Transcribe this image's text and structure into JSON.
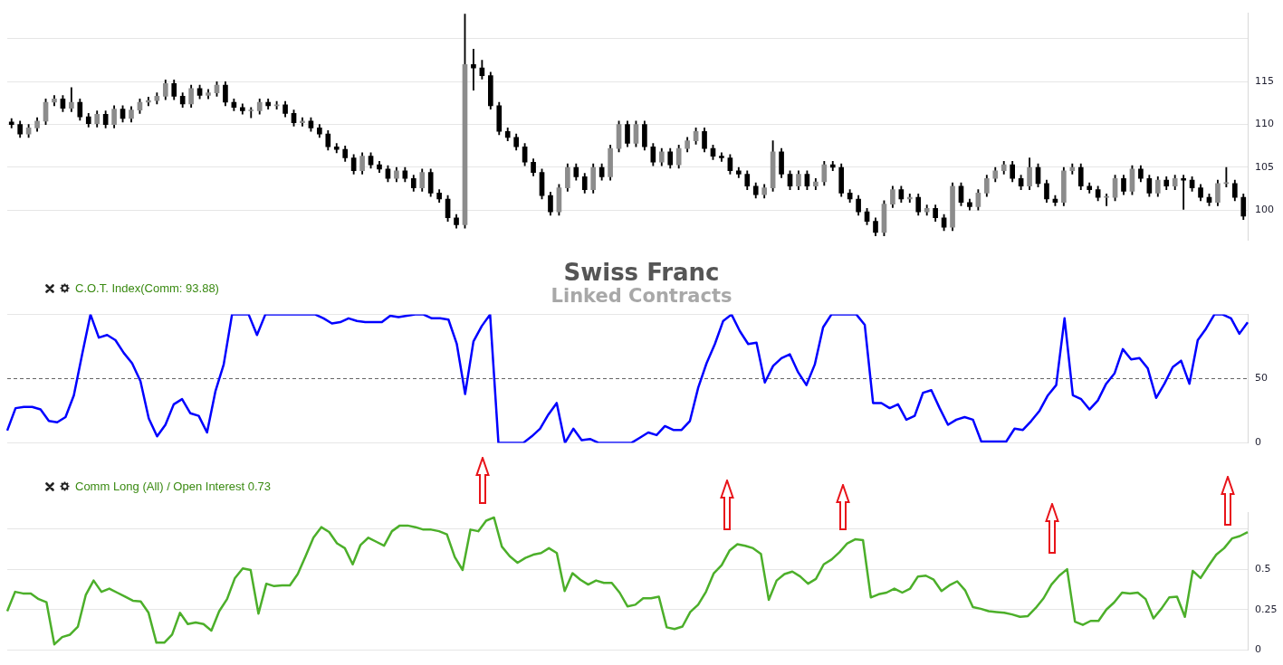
{
  "chart_data": [
    {
      "type": "candlestick",
      "title": "Swiss Franc",
      "subtitle": "Linked Contracts",
      "color": "#000000",
      "colors": [
        "#000000",
        "#000000",
        "#8c8c8c",
        "#8c8c8c",
        "#8c8c8c",
        "#8c8c8c",
        "#000000",
        "#8c8c8c",
        "#000000",
        "#000000",
        "#8c8c8c",
        "#000000",
        "#8c8c8c",
        "#000000",
        "#8c8c8c",
        "#8c8c8c",
        "#8c8c8c",
        "#8c8c8c",
        "#8c8c8c",
        "#000000",
        "#000000",
        "#8c8c8c",
        "#000000",
        "#8c8c8c",
        "#8c8c8c",
        "#000000",
        "#000000",
        "#000000",
        "#8c8c8c",
        "#8c8c8c",
        "#000000",
        "#8c8c8c",
        "#000000",
        "#000000",
        "#8c8c8c",
        "#000000",
        "#000000",
        "#000000",
        "#000000",
        "#000000",
        "#000000",
        "#8c8c8c",
        "#000000",
        "#000000",
        "#000000",
        "#8c8c8c",
        "#000000",
        "#000000",
        "#8c8c8c",
        "#000000",
        "#000000",
        "#000000",
        "#000000",
        "#8c8c8c",
        "#000000",
        "#000000",
        "#000000",
        "#000000",
        "#000000",
        "#000000",
        "#000000",
        "#000000",
        "#000000",
        "#000000",
        "#8c8c8c",
        "#8c8c8c",
        "#000000",
        "#000000",
        "#8c8c8c",
        "#000000",
        "#8c8c8c",
        "#8c8c8c",
        "#000000",
        "#8c8c8c",
        "#000000",
        "#000000",
        "#8c8c8c",
        "#000000",
        "#8c8c8c",
        "#8c8c8c",
        "#8c8c8c",
        "#000000",
        "#000000",
        "#000000",
        "#000000",
        "#000000",
        "#000000",
        "#000000",
        "#8c8c8c",
        "#8c8c8c",
        "#000000",
        "#000000",
        "#8c8c8c",
        "#000000",
        "#8c8c8c",
        "#8c8c8c",
        "#000000",
        "#000000",
        "#000000",
        "#000000",
        "#000000",
        "#000000",
        "#8c8c8c",
        "#8c8c8c",
        "#000000",
        "#8c8c8c",
        "#000000",
        "#8c8c8c",
        "#000000",
        "#000000",
        "#8c8c8c",
        "#000000",
        "#000000",
        "#8c8c8c",
        "#8c8c8c",
        "#8c8c8c",
        "#8c8c8c",
        "#000000",
        "#000000",
        "#8c8c8c",
        "#000000",
        "#000000",
        "#000000",
        "#8c8c8c",
        "#8c8c8c",
        "#000000",
        "#000000",
        "#000000",
        "#8c8c8c",
        "#8c8c8c",
        "#000000",
        "#8c8c8c",
        "#000000",
        "#000000",
        "#8c8c8c",
        "#000000",
        "#8c8c8c",
        "#000000",
        "#000000",
        "#000000",
        "#000000",
        "#8c8c8c",
        "#8c8c8c",
        "#000000",
        "#000000"
      ],
      "categories": [
        null,
        null,
        null,
        null,
        null,
        null,
        null,
        null,
        null,
        null,
        null,
        null,
        null,
        null,
        null,
        null,
        null,
        null,
        null,
        null,
        null,
        null,
        null,
        null,
        null,
        null,
        null,
        null,
        null,
        null,
        null,
        null,
        null,
        null,
        null,
        null,
        null,
        null,
        null,
        null,
        null,
        null,
        null,
        null,
        null,
        null,
        null,
        null,
        null,
        null,
        null,
        null,
        null,
        null,
        null,
        null,
        null,
        null,
        null,
        null,
        null,
        null,
        null,
        null,
        null,
        null,
        null,
        null,
        null,
        null,
        null,
        null,
        null,
        null,
        null,
        null,
        null,
        null,
        null,
        null,
        null,
        null,
        null,
        null,
        null,
        null,
        null,
        null,
        null,
        null,
        null,
        null,
        null,
        null,
        null,
        null,
        null,
        null,
        null,
        null,
        null,
        null,
        null,
        null,
        null,
        null,
        null,
        null,
        null,
        null,
        null,
        null,
        null,
        null,
        null,
        null,
        null,
        null,
        null,
        null,
        null,
        null,
        null,
        null,
        null,
        null,
        null,
        null,
        null,
        null,
        null,
        null,
        null,
        null,
        null,
        null,
        null,
        null,
        null,
        null,
        null,
        null,
        null,
        null,
        null
      ],
      "ohlc": [
        [
          110.3,
          110.7,
          109.6,
          110.0
        ],
        [
          110.0,
          110.4,
          108.5,
          108.9
        ],
        [
          108.9,
          110.0,
          108.5,
          109.6
        ],
        [
          109.6,
          110.8,
          109.2,
          110.4
        ],
        [
          110.4,
          113.0,
          110.0,
          112.6
        ],
        [
          112.6,
          113.4,
          112.2,
          113.0
        ],
        [
          113.0,
          113.4,
          111.5,
          111.9
        ],
        [
          111.9,
          114.3,
          111.5,
          112.6
        ],
        [
          112.6,
          113.0,
          110.5,
          110.9
        ],
        [
          110.9,
          111.3,
          109.7,
          110.1
        ],
        [
          110.1,
          111.6,
          109.7,
          111.2
        ],
        [
          111.2,
          111.6,
          109.6,
          110.0
        ],
        [
          110.0,
          112.2,
          109.6,
          111.8
        ],
        [
          111.8,
          112.2,
          110.3,
          110.7
        ],
        [
          110.7,
          112.1,
          110.3,
          111.7
        ],
        [
          111.7,
          113.0,
          111.3,
          112.6
        ],
        [
          112.6,
          113.2,
          112.2,
          112.8
        ],
        [
          112.8,
          113.7,
          112.4,
          113.3
        ],
        [
          113.3,
          115.2,
          112.9,
          114.8
        ],
        [
          114.8,
          115.2,
          112.9,
          113.3
        ],
        [
          113.3,
          113.7,
          112.0,
          112.4
        ],
        [
          112.4,
          114.6,
          112.0,
          114.2
        ],
        [
          114.2,
          114.6,
          113.0,
          113.4
        ],
        [
          113.4,
          114.1,
          113.0,
          113.7
        ],
        [
          113.7,
          115.0,
          113.3,
          114.6
        ],
        [
          114.6,
          115.0,
          112.2,
          112.6
        ],
        [
          112.6,
          113.0,
          111.6,
          112.0
        ],
        [
          112.0,
          112.4,
          111.2,
          111.6
        ],
        [
          111.6,
          112.0,
          110.8,
          111.6
        ],
        [
          111.6,
          113.0,
          111.2,
          112.6
        ],
        [
          112.6,
          113.0,
          111.8,
          112.2
        ],
        [
          112.2,
          112.7,
          111.8,
          112.3
        ],
        [
          112.3,
          112.7,
          110.9,
          111.3
        ],
        [
          111.3,
          111.7,
          109.8,
          110.2
        ],
        [
          110.2,
          110.8,
          109.8,
          110.4
        ],
        [
          110.4,
          110.8,
          109.2,
          109.6
        ],
        [
          109.6,
          110.0,
          108.5,
          108.9
        ],
        [
          108.9,
          109.3,
          107.0,
          107.4
        ],
        [
          107.4,
          107.8,
          106.7,
          107.1
        ],
        [
          107.1,
          107.5,
          105.7,
          106.1
        ],
        [
          106.1,
          106.5,
          104.2,
          104.6
        ],
        [
          104.6,
          106.7,
          104.2,
          106.3
        ],
        [
          106.3,
          106.7,
          104.9,
          105.3
        ],
        [
          105.3,
          105.7,
          104.4,
          104.8
        ],
        [
          104.8,
          105.2,
          103.3,
          103.7
        ],
        [
          103.7,
          105.0,
          103.3,
          104.6
        ],
        [
          104.6,
          105.0,
          103.3,
          103.7
        ],
        [
          103.7,
          104.1,
          102.2,
          102.6
        ],
        [
          102.6,
          104.8,
          102.2,
          104.4
        ],
        [
          104.4,
          104.8,
          101.6,
          102.0
        ],
        [
          102.0,
          102.4,
          100.9,
          101.3
        ],
        [
          101.3,
          101.7,
          98.7,
          99.1
        ],
        [
          99.1,
          99.5,
          97.9,
          98.3
        ],
        [
          98.3,
          122.9,
          97.9,
          117.0
        ],
        [
          117.0,
          118.8,
          114.0,
          116.6
        ],
        [
          116.6,
          117.5,
          115.3,
          115.7
        ],
        [
          115.7,
          116.1,
          111.8,
          112.2
        ],
        [
          112.2,
          112.6,
          108.8,
          109.2
        ],
        [
          109.2,
          109.6,
          108.1,
          108.5
        ],
        [
          108.5,
          108.9,
          107.0,
          107.4
        ],
        [
          107.4,
          107.8,
          105.2,
          105.6
        ],
        [
          105.6,
          106.0,
          104.0,
          104.4
        ],
        [
          104.4,
          104.8,
          101.3,
          101.7
        ],
        [
          101.7,
          102.1,
          99.4,
          99.8
        ],
        [
          99.8,
          103.0,
          99.4,
          102.6
        ],
        [
          102.6,
          105.4,
          102.2,
          105.0
        ],
        [
          105.0,
          105.4,
          103.5,
          103.9
        ],
        [
          103.9,
          104.3,
          102.0,
          102.4
        ],
        [
          102.4,
          105.4,
          102.0,
          105.0
        ],
        [
          105.0,
          105.4,
          103.5,
          103.9
        ],
        [
          103.9,
          107.6,
          103.5,
          107.2
        ],
        [
          107.2,
          110.4,
          106.8,
          110.0
        ],
        [
          110.0,
          110.4,
          107.4,
          107.8
        ],
        [
          107.8,
          110.4,
          107.4,
          110.0
        ],
        [
          110.0,
          110.4,
          107.0,
          107.4
        ],
        [
          107.4,
          107.8,
          105.2,
          105.6
        ],
        [
          105.6,
          107.2,
          105.2,
          106.8
        ],
        [
          106.8,
          107.2,
          104.9,
          105.3
        ],
        [
          105.3,
          107.6,
          104.9,
          107.2
        ],
        [
          107.2,
          108.5,
          106.8,
          108.1
        ],
        [
          108.1,
          109.6,
          107.7,
          109.2
        ],
        [
          109.2,
          109.6,
          106.8,
          107.2
        ],
        [
          107.2,
          107.6,
          105.9,
          106.3
        ],
        [
          106.3,
          106.7,
          105.7,
          106.1
        ],
        [
          106.1,
          106.5,
          104.2,
          104.6
        ],
        [
          104.6,
          105.0,
          103.8,
          104.2
        ],
        [
          104.2,
          104.6,
          102.4,
          102.8
        ],
        [
          102.8,
          103.2,
          101.4,
          101.8
        ],
        [
          101.8,
          103.0,
          101.4,
          102.6
        ],
        [
          102.6,
          108.1,
          102.2,
          106.8
        ],
        [
          106.8,
          107.2,
          103.8,
          104.2
        ],
        [
          104.2,
          104.6,
          102.4,
          102.8
        ],
        [
          102.8,
          104.6,
          102.4,
          104.2
        ],
        [
          104.2,
          104.6,
          102.4,
          102.8
        ],
        [
          102.8,
          103.7,
          102.4,
          103.3
        ],
        [
          103.3,
          105.7,
          102.9,
          105.3
        ],
        [
          105.3,
          105.7,
          104.6,
          105.0
        ],
        [
          105.0,
          105.4,
          101.6,
          102.0
        ],
        [
          102.0,
          102.4,
          100.9,
          101.3
        ],
        [
          101.3,
          101.7,
          99.4,
          99.8
        ],
        [
          99.8,
          100.2,
          98.3,
          98.7
        ],
        [
          98.7,
          99.1,
          97.0,
          97.4
        ],
        [
          97.4,
          101.1,
          97.0,
          100.7
        ],
        [
          100.7,
          102.8,
          100.3,
          102.4
        ],
        [
          102.4,
          102.8,
          100.9,
          101.3
        ],
        [
          101.3,
          101.9,
          100.9,
          101.5
        ],
        [
          101.5,
          101.9,
          99.4,
          99.8
        ],
        [
          99.8,
          100.6,
          99.4,
          100.2
        ],
        [
          100.2,
          100.6,
          98.7,
          99.1
        ],
        [
          99.1,
          99.5,
          97.6,
          98.0
        ],
        [
          98.0,
          103.2,
          97.6,
          102.8
        ],
        [
          102.8,
          103.2,
          100.5,
          100.9
        ],
        [
          100.9,
          101.3,
          100.0,
          100.4
        ],
        [
          100.4,
          102.4,
          100.0,
          102.0
        ],
        [
          102.0,
          104.1,
          101.6,
          103.7
        ],
        [
          103.7,
          105.0,
          103.3,
          104.6
        ],
        [
          104.6,
          105.7,
          104.2,
          105.3
        ],
        [
          105.3,
          105.7,
          103.3,
          103.7
        ],
        [
          103.7,
          104.1,
          102.4,
          102.8
        ],
        [
          102.8,
          106.1,
          102.4,
          105.0
        ],
        [
          105.0,
          105.4,
          102.7,
          103.1
        ],
        [
          103.1,
          103.5,
          100.9,
          101.3
        ],
        [
          101.3,
          101.7,
          100.5,
          100.9
        ],
        [
          100.9,
          105.0,
          100.5,
          104.6
        ],
        [
          104.6,
          105.4,
          104.2,
          105.0
        ],
        [
          105.0,
          105.4,
          102.4,
          102.8
        ],
        [
          102.8,
          103.2,
          102.0,
          102.4
        ],
        [
          102.4,
          102.8,
          101.1,
          101.5
        ],
        [
          101.5,
          101.9,
          100.5,
          101.5
        ],
        [
          101.5,
          104.1,
          101.1,
          103.7
        ],
        [
          103.7,
          104.1,
          101.8,
          102.2
        ],
        [
          102.2,
          105.2,
          101.8,
          104.8
        ],
        [
          104.8,
          105.2,
          103.3,
          103.7
        ],
        [
          103.7,
          104.1,
          101.6,
          102.0
        ],
        [
          102.0,
          103.9,
          101.6,
          103.5
        ],
        [
          103.5,
          103.9,
          102.4,
          102.8
        ],
        [
          102.8,
          104.1,
          102.4,
          103.7
        ],
        [
          103.7,
          104.1,
          100.1,
          103.5
        ],
        [
          103.5,
          103.9,
          102.2,
          102.6
        ],
        [
          102.6,
          103.0,
          101.1,
          101.5
        ],
        [
          101.5,
          101.9,
          100.5,
          100.9
        ],
        [
          100.9,
          103.5,
          100.5,
          103.1
        ],
        [
          103.1,
          105.0,
          102.7,
          103.1
        ],
        [
          103.1,
          103.5,
          101.1,
          101.5
        ],
        [
          101.5,
          101.9,
          98.9,
          99.3
        ]
      ],
      "ylim": [
        96.5,
        123
      ],
      "yticks": [
        100,
        105,
        110,
        115,
        {
          "value": 120,
          "label": null
        }
      ],
      "grid": "y",
      "tick_labels": "y"
    },
    {
      "type": "line",
      "title": "C.O.T. Index(Comm: 93.88)",
      "color": "#0000ff",
      "marker": "none",
      "line_style": "solid",
      "categories": [
        null,
        null,
        null,
        null,
        null,
        null,
        null,
        null,
        null,
        null,
        null,
        null,
        null,
        null,
        null,
        null,
        null,
        null,
        null,
        null,
        null,
        null,
        null,
        null,
        null,
        null,
        null,
        null,
        null,
        null,
        null,
        null,
        null,
        null,
        null,
        null,
        null,
        null,
        null,
        null,
        null,
        null,
        null,
        null,
        null,
        null,
        null,
        null,
        null,
        null,
        null,
        null,
        null,
        null,
        null,
        null,
        null,
        null,
        null,
        null,
        null,
        null,
        null,
        null,
        null,
        null,
        null,
        null,
        null,
        null,
        null,
        null,
        null,
        null,
        null,
        null,
        null,
        null,
        null,
        null,
        null,
        null,
        null,
        null,
        null,
        null,
        null,
        null,
        null,
        null,
        null,
        null,
        null,
        null,
        null,
        null,
        null,
        null,
        null,
        null,
        null,
        null,
        null,
        null,
        null,
        null,
        null,
        null,
        null,
        null,
        null,
        null,
        null,
        null,
        null,
        null,
        null,
        null,
        null,
        null,
        null,
        null,
        null,
        null,
        null,
        null,
        null,
        null,
        null,
        null,
        null,
        null,
        null,
        null,
        null,
        null,
        null,
        null,
        null,
        null,
        null,
        null,
        null,
        null,
        null,
        null,
        null,
        null,
        null,
        null
      ],
      "values": [
        9.5,
        27,
        28,
        28,
        26,
        17,
        16,
        20,
        37,
        69,
        100,
        82,
        84,
        80,
        70,
        62,
        48,
        19,
        5,
        14,
        30,
        34,
        23,
        21,
        8,
        40,
        61,
        100,
        100,
        100,
        84,
        100,
        100,
        100,
        100,
        100,
        100,
        100,
        97,
        93,
        94,
        97,
        95,
        94,
        94,
        94,
        99,
        98,
        99,
        100,
        100,
        97,
        97,
        96,
        77,
        38,
        79,
        91,
        100,
        0,
        0,
        0,
        0,
        5,
        11,
        22,
        31,
        0,
        11,
        2,
        3,
        0,
        0,
        0,
        0,
        0,
        4,
        8,
        6,
        13,
        10,
        10,
        17,
        43,
        62,
        77,
        95,
        100,
        87,
        77,
        78,
        47,
        60,
        66,
        69,
        55,
        45,
        61,
        90,
        100,
        100,
        100,
        100,
        92,
        31,
        31,
        27,
        30,
        18,
        21,
        39,
        41,
        27,
        14,
        18,
        20,
        18,
        1,
        1,
        1,
        1,
        11,
        10,
        17,
        25,
        37,
        45,
        97,
        37,
        34,
        26,
        33,
        46,
        54,
        73,
        65,
        66,
        58,
        35,
        46,
        59,
        64,
        46,
        80,
        89,
        100,
        100,
        97,
        85,
        93.88
      ],
      "ylim": [
        0,
        100
      ],
      "yticks": [
        0,
        50,
        {
          "value": 100,
          "label": null
        }
      ],
      "grid": "y",
      "tick_labels": "y",
      "ref_lines": [
        {
          "axis": "y",
          "value": 50,
          "color": "#666666",
          "line_style": "dashed"
        }
      ]
    },
    {
      "type": "line",
      "title": "Comm Long (All) / Open Interest 0.73",
      "color": "#4caf2a",
      "marker": "none",
      "line_style": "solid",
      "categories": [
        null,
        null,
        null,
        null,
        null,
        null,
        null,
        null,
        null,
        null,
        null,
        null,
        null,
        null,
        null,
        null,
        null,
        null,
        null,
        null,
        null,
        null,
        null,
        null,
        null,
        null,
        null,
        null,
        null,
        null,
        null,
        null,
        null,
        null,
        null,
        null,
        null,
        null,
        null,
        null,
        null,
        null,
        null,
        null,
        null,
        null,
        null,
        null,
        null,
        null,
        null,
        null,
        null,
        null,
        null,
        null,
        null,
        null,
        null,
        null,
        null,
        null,
        null,
        null,
        null,
        null,
        null,
        null,
        null,
        null,
        null,
        null,
        null,
        null,
        null,
        null,
        null,
        null,
        null,
        null,
        null,
        null,
        null,
        null,
        null,
        null,
        null,
        null,
        null,
        null,
        null,
        null,
        null,
        null,
        null,
        null,
        null,
        null,
        null,
        null,
        null,
        null,
        null,
        null,
        null,
        null,
        null,
        null,
        null,
        null,
        null,
        null,
        null,
        null,
        null,
        null,
        null,
        null,
        null,
        null,
        null,
        null,
        null,
        null,
        null,
        null,
        null,
        null,
        null,
        null,
        null,
        null,
        null,
        null,
        null,
        null,
        null,
        null,
        null,
        null,
        null,
        null,
        null,
        null,
        null,
        null,
        null,
        null,
        null,
        null,
        null,
        null,
        null,
        null,
        null,
        null,
        null,
        null,
        null
      ],
      "values": [
        0.24,
        0.36,
        0.35,
        0.35,
        0.315,
        0.295,
        0.035,
        0.08,
        0.095,
        0.145,
        0.34,
        0.43,
        0.36,
        0.38,
        0.355,
        0.33,
        0.305,
        0.3,
        0.23,
        0.045,
        0.045,
        0.095,
        0.23,
        0.16,
        0.17,
        0.16,
        0.12,
        0.24,
        0.315,
        0.445,
        0.505,
        0.495,
        0.225,
        0.41,
        0.395,
        0.4,
        0.4,
        0.47,
        0.58,
        0.695,
        0.76,
        0.73,
        0.66,
        0.63,
        0.53,
        0.65,
        0.695,
        0.67,
        0.645,
        0.735,
        0.77,
        0.77,
        0.76,
        0.745,
        0.745,
        0.735,
        0.715,
        0.575,
        0.495,
        0.745,
        0.735,
        0.8,
        0.82,
        0.64,
        0.58,
        0.54,
        0.57,
        0.59,
        0.6,
        0.63,
        0.6,
        0.365,
        0.475,
        0.435,
        0.405,
        0.43,
        0.415,
        0.415,
        0.355,
        0.27,
        0.28,
        0.32,
        0.32,
        0.33,
        0.14,
        0.13,
        0.145,
        0.235,
        0.28,
        0.36,
        0.475,
        0.525,
        0.615,
        0.655,
        0.645,
        0.63,
        0.595,
        0.31,
        0.43,
        0.47,
        0.485,
        0.455,
        0.41,
        0.44,
        0.53,
        0.56,
        0.605,
        0.66,
        0.685,
        0.68,
        0.325,
        0.345,
        0.355,
        0.38,
        0.355,
        0.38,
        0.455,
        0.46,
        0.435,
        0.365,
        0.4,
        0.425,
        0.37,
        0.265,
        0.255,
        0.24,
        0.235,
        0.23,
        0.22,
        0.205,
        0.21,
        0.26,
        0.32,
        0.405,
        0.46,
        0.5,
        0.175,
        0.155,
        0.18,
        0.18,
        0.25,
        0.295,
        0.355,
        0.35,
        0.355,
        0.315,
        0.195,
        0.255,
        0.325,
        0.33,
        0.205,
        0.49,
        0.445,
        0.52,
        0.59,
        0.63,
        0.69,
        0.705,
        0.73
      ],
      "ylim": [
        0,
        0.85
      ],
      "yticks": [
        0,
        0.25,
        0.5,
        {
          "value": 0.75,
          "label": null
        }
      ],
      "grid": "y",
      "tick_labels": "y"
    }
  ]
}
